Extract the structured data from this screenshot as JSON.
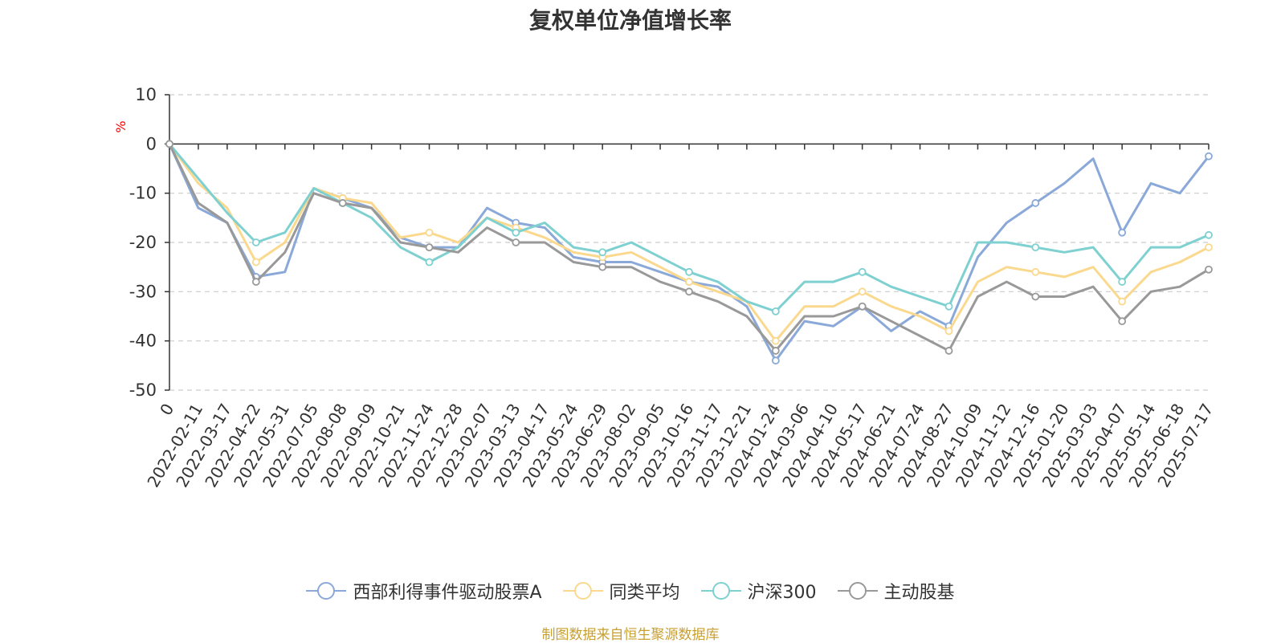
{
  "chart_data": {
    "type": "line",
    "title": "复权单位净值增长率",
    "ylabel": "%",
    "ylim": [
      -50,
      10
    ],
    "yticks": [
      10,
      0,
      -10,
      -20,
      -30,
      -40,
      -50
    ],
    "grid": true,
    "legend_position": "bottom",
    "xticks": [
      "0",
      "2022-02-11",
      "2022-03-17",
      "2022-04-22",
      "2022-05-31",
      "2022-07-05",
      "2022-08-08",
      "2022-09-09",
      "2022-10-21",
      "2022-11-24",
      "2022-12-28",
      "2023-02-07",
      "2023-03-13",
      "2023-04-17",
      "2023-05-24",
      "2023-06-29",
      "2023-08-02",
      "2023-09-05",
      "2023-10-16",
      "2023-11-17",
      "2023-12-21",
      "2024-01-24",
      "2024-03-06",
      "2024-04-10",
      "2024-05-17",
      "2024-06-21",
      "2024-07-24",
      "2024-08-27",
      "2024-10-09",
      "2024-11-12",
      "2024-12-16",
      "2025-01-20",
      "2025-03-03",
      "2025-04-07",
      "2025-05-14",
      "2025-06-18",
      "2025-07-17"
    ],
    "x": [
      "0",
      "2022-02-11",
      "2022-03-17",
      "2022-04-22",
      "2022-05-31",
      "2022-07-05",
      "2022-08-08",
      "2022-09-09",
      "2022-10-21",
      "2022-11-24",
      "2022-12-28",
      "2023-02-07",
      "2023-03-13",
      "2023-04-17",
      "2023-05-24",
      "2023-06-29",
      "2023-08-02",
      "2023-09-05",
      "2023-10-16",
      "2023-11-17",
      "2023-12-21",
      "2024-01-24",
      "2024-03-06",
      "2024-04-10",
      "2024-05-17",
      "2024-06-21",
      "2024-07-24",
      "2024-08-27",
      "2024-10-09",
      "2024-11-12",
      "2024-12-16",
      "2025-01-20",
      "2025-03-03",
      "2025-04-07",
      "2025-05-14",
      "2025-06-18",
      "2025-07-17"
    ],
    "series": [
      {
        "name": "西部利得事件驱动股票A",
        "color": "#8aa9d8",
        "values": [
          0,
          -13,
          -16,
          -27,
          -26,
          -9,
          -11,
          -13,
          -19,
          -21,
          -21,
          -13,
          -16,
          -17,
          -23,
          -24,
          -24,
          -26,
          -28,
          -29,
          -33,
          -44,
          -36,
          -37,
          -33,
          -38,
          -34,
          -37,
          -23,
          -16,
          -12,
          -8,
          -3,
          -18,
          -8,
          -10,
          -2.5
        ]
      },
      {
        "name": "同类平均",
        "color": "#fad98f",
        "values": [
          0,
          -8,
          -13,
          -24,
          -20,
          -9,
          -11,
          -12,
          -19,
          -18,
          -20,
          -15,
          -17,
          -19,
          -22,
          -23,
          -22,
          -25,
          -28,
          -30,
          -32,
          -40,
          -33,
          -33,
          -30,
          -33,
          -35,
          -38,
          -28,
          -25,
          -26,
          -27,
          -25,
          -32,
          -26,
          -24,
          -21
        ]
      },
      {
        "name": "沪深300",
        "color": "#7fd0d0",
        "values": [
          0,
          -7,
          -14,
          -20,
          -18,
          -9,
          -12,
          -15,
          -21,
          -24,
          -21,
          -15,
          -18,
          -16,
          -21,
          -22,
          -20,
          -23,
          -26,
          -28,
          -32,
          -34,
          -28,
          -28,
          -26,
          -29,
          -31,
          -33,
          -20,
          -20,
          -21,
          -22,
          -21,
          -28,
          -21,
          -21,
          -18.5
        ]
      },
      {
        "name": "主动股基",
        "color": "#999999",
        "values": [
          0,
          -12,
          -16,
          -28,
          -22,
          -10,
          -12,
          -13,
          -20,
          -21,
          -22,
          -17,
          -20,
          -20,
          -24,
          -25,
          -25,
          -28,
          -30,
          -32,
          -35,
          -42,
          -35,
          -35,
          -33,
          -36,
          -39,
          -42,
          -31,
          -28,
          -31,
          -31,
          -29,
          -36,
          -30,
          -29,
          -25.5
        ]
      }
    ],
    "source_note": "制图数据来自恒生聚源数据库"
  }
}
